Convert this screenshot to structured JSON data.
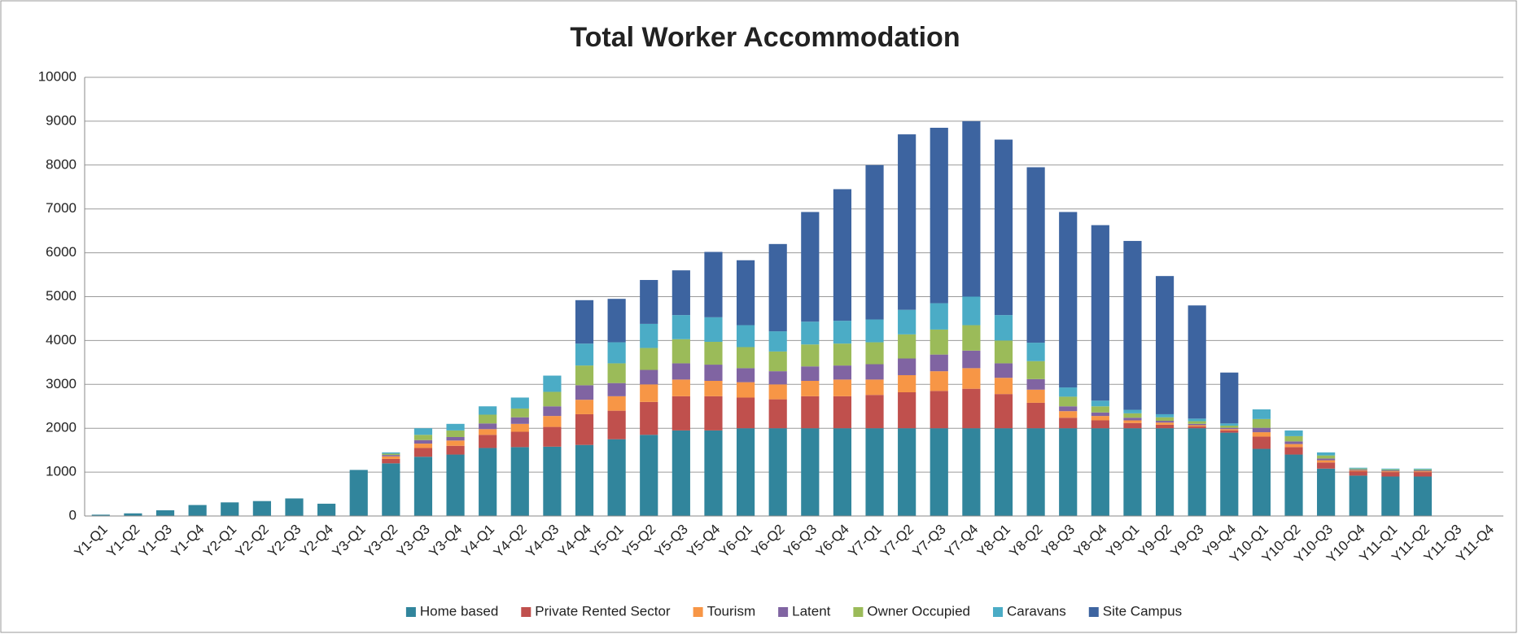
{
  "chart_data": {
    "type": "stacked_bar",
    "title": "Total Worker Accommodation",
    "categories": [
      "Y1-Q1",
      "Y1-Q2",
      "Y1-Q3",
      "Y1-Q4",
      "Y2-Q1",
      "Y2-Q2",
      "Y2-Q3",
      "Y2-Q4",
      "Y3-Q1",
      "Y3-Q2",
      "Y3-Q3",
      "Y3-Q4",
      "Y4-Q1",
      "Y4-Q2",
      "Y4-Q3",
      "Y4-Q4",
      "Y5-Q1",
      "Y5-Q2",
      "Y5-Q3",
      "Y5-Q4",
      "Y6-Q1",
      "Y6-Q2",
      "Y6-Q3",
      "Y6-Q4",
      "Y7-Q1",
      "Y7-Q2",
      "Y7-Q3",
      "Y7-Q4",
      "Y8-Q1",
      "Y8-Q2",
      "Y8-Q3",
      "Y8-Q4",
      "Y9-Q1",
      "Y9-Q2",
      "Y9-Q3",
      "Y9-Q4",
      "Y10-Q1",
      "Y10-Q2",
      "Y10-Q3",
      "Y10-Q4",
      "Y11-Q1",
      "Y11-Q2",
      "Y11-Q3",
      "Y11-Q4"
    ],
    "series": [
      {
        "name": "Home based",
        "color": "#31859c",
        "values": [
          30,
          60,
          130,
          250,
          310,
          340,
          400,
          280,
          1050,
          1200,
          1350,
          1400,
          1550,
          1570,
          1580,
          1620,
          1750,
          1850,
          1950,
          1950,
          2000,
          2000,
          2000,
          2000,
          2000,
          2000,
          2000,
          2000,
          2000,
          2000,
          2000,
          2000,
          2000,
          2000,
          2000,
          1900,
          1530,
          1400,
          1080,
          920,
          900,
          900,
          0,
          0
        ]
      },
      {
        "name": "Private Rented Sector",
        "color": "#c0504d",
        "values": [
          0,
          0,
          0,
          0,
          0,
          0,
          0,
          0,
          0,
          100,
          200,
          200,
          300,
          350,
          450,
          700,
          650,
          750,
          780,
          780,
          700,
          660,
          730,
          730,
          760,
          820,
          850,
          900,
          780,
          580,
          240,
          180,
          120,
          80,
          40,
          50,
          280,
          170,
          140,
          100,
          100,
          100,
          0,
          0
        ]
      },
      {
        "name": "Tourism",
        "color": "#f79646",
        "values": [
          0,
          0,
          0,
          0,
          0,
          0,
          0,
          0,
          0,
          60,
          100,
          120,
          130,
          180,
          250,
          330,
          330,
          400,
          380,
          350,
          350,
          340,
          350,
          380,
          350,
          390,
          450,
          470,
          370,
          300,
          150,
          100,
          60,
          50,
          30,
          30,
          100,
          70,
          50,
          20,
          20,
          20,
          0,
          0
        ]
      },
      {
        "name": "Latent",
        "color": "#8064a2",
        "values": [
          0,
          0,
          0,
          0,
          0,
          0,
          0,
          0,
          0,
          30,
          80,
          80,
          130,
          150,
          220,
          330,
          300,
          330,
          370,
          370,
          320,
          300,
          330,
          320,
          350,
          380,
          380,
          400,
          330,
          240,
          110,
          80,
          60,
          40,
          30,
          30,
          100,
          60,
          40,
          20,
          20,
          20,
          0,
          0
        ]
      },
      {
        "name": "Owner Occupied",
        "color": "#9bbb59",
        "values": [
          0,
          0,
          0,
          0,
          0,
          0,
          0,
          0,
          0,
          30,
          120,
          150,
          200,
          200,
          330,
          450,
          450,
          500,
          550,
          520,
          480,
          450,
          500,
          500,
          500,
          550,
          570,
          580,
          520,
          410,
          220,
          140,
          100,
          80,
          60,
          50,
          200,
          120,
          70,
          20,
          20,
          20,
          0,
          0
        ]
      },
      {
        "name": "Caravans",
        "color": "#4bacc6",
        "values": [
          0,
          0,
          0,
          0,
          0,
          0,
          0,
          0,
          0,
          30,
          150,
          150,
          190,
          250,
          370,
          500,
          480,
          550,
          550,
          560,
          500,
          460,
          520,
          520,
          520,
          560,
          600,
          650,
          580,
          420,
          210,
          130,
          80,
          70,
          60,
          50,
          220,
          130,
          70,
          20,
          20,
          20,
          0,
          0
        ]
      },
      {
        "name": "Site Campus",
        "color": "#3d64a0",
        "values": [
          0,
          0,
          0,
          0,
          0,
          0,
          0,
          0,
          0,
          0,
          0,
          0,
          0,
          0,
          0,
          990,
          990,
          1000,
          1020,
          1490,
          1480,
          1990,
          2500,
          3000,
          3520,
          4000,
          4000,
          4000,
          4000,
          4000,
          4000,
          4000,
          3850,
          3150,
          2580,
          1160,
          0,
          0,
          0,
          0,
          0,
          0,
          0,
          0
        ]
      }
    ],
    "ylim": [
      0,
      10000
    ],
    "yticks": [
      0,
      1000,
      2000,
      3000,
      4000,
      5000,
      6000,
      7000,
      8000,
      9000,
      10000
    ],
    "grid": true,
    "legend": "bottom"
  }
}
